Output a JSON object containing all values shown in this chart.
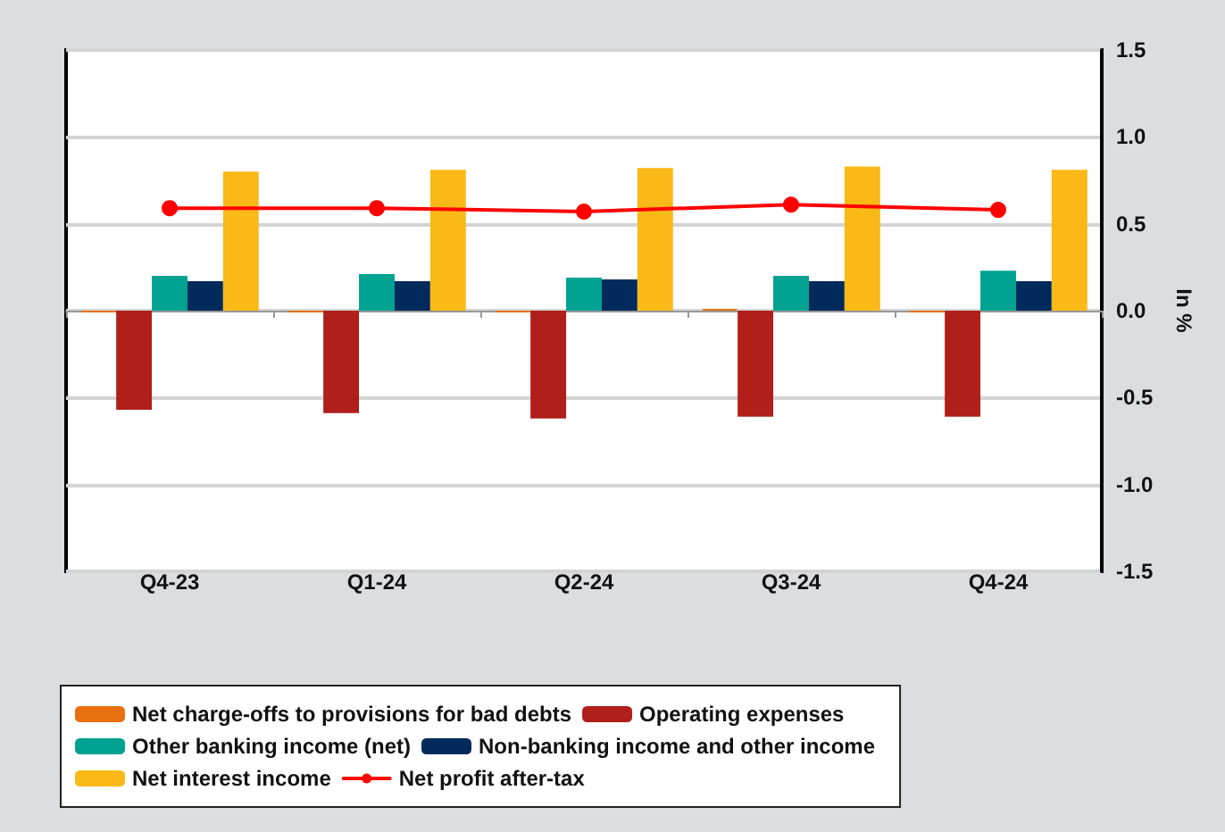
{
  "chart_data": {
    "type": "bar",
    "ylabel": "In %",
    "categories": [
      "Q4-23",
      "Q1-24",
      "Q2-24",
      "Q3-24",
      "Q4-24"
    ],
    "series": [
      {
        "name": "Net charge-offs to provisions for bad debts",
        "color": "#e8700f",
        "values": [
          -0.01,
          -0.01,
          -0.01,
          0.01,
          -0.01
        ]
      },
      {
        "name": "Operating expenses",
        "color": "#b01f1a",
        "values": [
          -0.57,
          -0.59,
          -0.62,
          -0.61,
          -0.61
        ]
      },
      {
        "name": "Other banking income (net)",
        "color": "#00a291",
        "values": [
          0.2,
          0.21,
          0.19,
          0.2,
          0.23
        ]
      },
      {
        "name": "Non-banking income and other income",
        "color": "#002b5c",
        "values": [
          0.17,
          0.17,
          0.18,
          0.17,
          0.17
        ]
      },
      {
        "name": "Net interest income",
        "color": "#fbb917",
        "values": [
          0.8,
          0.81,
          0.82,
          0.83,
          0.81
        ]
      },
      {
        "name": "Net profit after-tax",
        "type": "line",
        "color": "#ff0000",
        "marker": "circle",
        "values": [
          0.59,
          0.59,
          0.57,
          0.61,
          0.58
        ]
      }
    ],
    "ylim": [
      -1.5,
      1.5
    ],
    "yticks": [
      {
        "value": -1.5,
        "label": "-1.5"
      },
      {
        "value": -1.0,
        "label": "-1.0"
      },
      {
        "value": -0.5,
        "label": "-0.5"
      },
      {
        "value": 0,
        "label": "0.0"
      },
      {
        "value": 0.5,
        "label": "0.5"
      },
      {
        "value": 1.0,
        "label": "1.0"
      },
      {
        "value": 1.5,
        "label": "1.5"
      }
    ],
    "grid": "y",
    "legend": "bottom"
  }
}
